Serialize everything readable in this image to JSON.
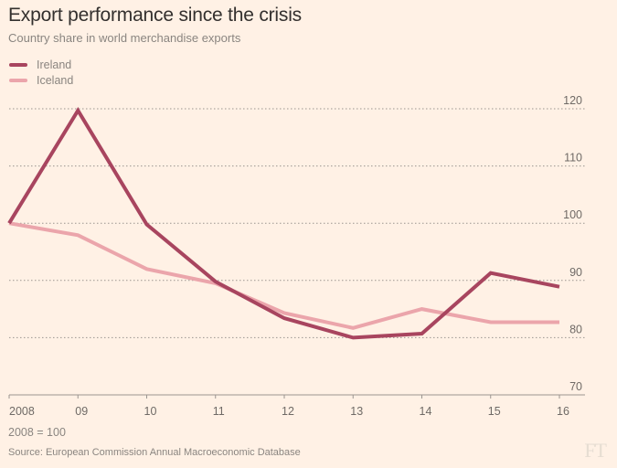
{
  "header": {
    "title": "Export performance since the crisis",
    "subtitle": "Country share in world merchandise exports"
  },
  "footnote": "2008 = 100",
  "source": "Source: European Commission Annual Macroeconomic Database",
  "logo": "FT",
  "colors": {
    "background": "#fff1e5",
    "ireland": "#a8455f",
    "iceland": "#eba5ab",
    "grid": "#9b9590",
    "axis": "#9b9590"
  },
  "chart_data": {
    "type": "line",
    "title": "Export performance since the crisis",
    "subtitle": "Country share in world merchandise exports",
    "xlabel": "",
    "ylabel": "",
    "x": [
      "2008",
      "09",
      "10",
      "11",
      "12",
      "13",
      "14",
      "15",
      "16"
    ],
    "xlim": [
      0,
      8
    ],
    "ylim": [
      70,
      120
    ],
    "yticks": [
      70,
      80,
      90,
      100,
      110,
      120
    ],
    "grid": true,
    "y_axis_side": "right",
    "legend_position": "top-left",
    "series": [
      {
        "name": "Ireland",
        "color": "#a8455f",
        "values": [
          100,
          119.7,
          99.8,
          89.8,
          83.4,
          80.0,
          80.7,
          91.3,
          88.9
        ]
      },
      {
        "name": "Iceland",
        "color": "#eba5ab",
        "values": [
          100,
          97.9,
          92.0,
          89.5,
          84.3,
          81.7,
          85.0,
          82.7,
          82.7
        ]
      }
    ],
    "annotations": [
      "2008 = 100"
    ]
  }
}
